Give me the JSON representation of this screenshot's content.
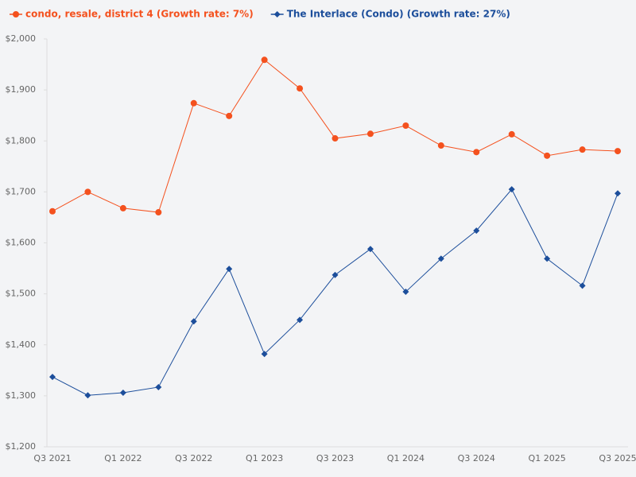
{
  "chart_data": {
    "type": "line",
    "categories": [
      "Q3 2021",
      null,
      "Q1 2022",
      null,
      "Q3 2022",
      null,
      "Q1 2023",
      null,
      "Q3 2023",
      null,
      "Q1 2024",
      null,
      "Q3 2024",
      null,
      "Q1 2025",
      null,
      "Q3 2025"
    ],
    "series": [
      {
        "name": "condo, resale, district 4 (Growth rate: 7%)",
        "color": "#f4511e",
        "marker": "circle",
        "values": [
          1662,
          1700,
          1668,
          1660,
          1874,
          1849,
          1959,
          1903,
          1805,
          1814,
          1830,
          1791,
          1778,
          1813,
          1771,
          1783,
          1780
        ]
      },
      {
        "name": "The Interlace (Condo) (Growth rate: 27%)",
        "color": "#1c4e9b",
        "marker": "diamond",
        "values": [
          1337,
          1301,
          1306,
          1317,
          1446,
          1549,
          1382,
          1449,
          1537,
          1588,
          1504,
          1569,
          1624,
          1705,
          1569,
          1516,
          1697
        ]
      }
    ],
    "ylim": [
      1200,
      2000
    ],
    "yticks": [
      {
        "value": 1200,
        "label": "$1,200"
      },
      {
        "value": 1300,
        "label": "$1,300"
      },
      {
        "value": 1400,
        "label": "$1,400"
      },
      {
        "value": 1500,
        "label": "$1,500"
      },
      {
        "value": 1600,
        "label": "$1,600"
      },
      {
        "value": 1700,
        "label": "$1,700"
      },
      {
        "value": 1800,
        "label": "$1,800"
      },
      {
        "value": 1900,
        "label": "$1,900"
      },
      {
        "value": 2000,
        "label": "$2,000"
      }
    ],
    "grid": false
  }
}
